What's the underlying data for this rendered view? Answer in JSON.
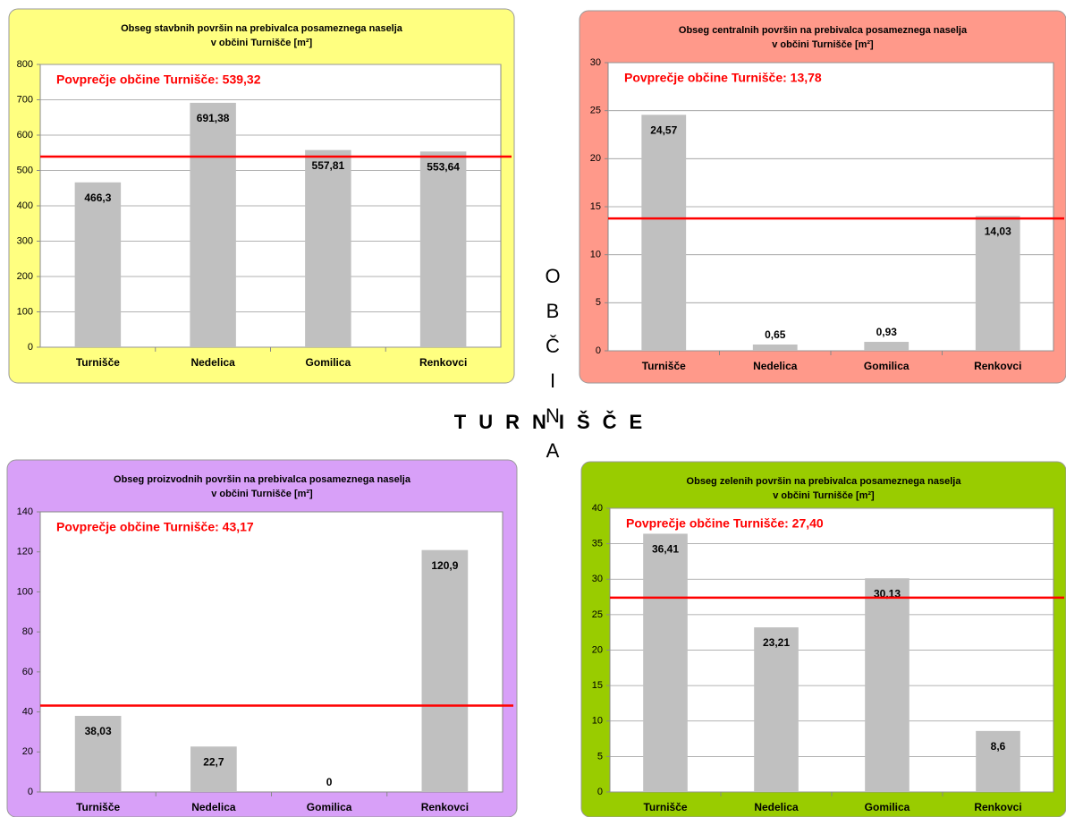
{
  "chart_data": [
    {
      "type": "bar",
      "title_lines": [
        "Obseg stavbnih površin na prebivalca posameznega naselja",
        "v občini Turnišče [m²]"
      ],
      "categories": [
        "Turnišče",
        "Nedelica",
        "Gomilica",
        "Renkovci"
      ],
      "values": [
        466.3,
        691.38,
        557.81,
        553.64
      ],
      "value_labels": [
        "466,3",
        "691,38",
        "557,81",
        "553,64"
      ],
      "color": "#c0c0c0",
      "background": "#ffff80",
      "grid": true,
      "ylim": [
        0,
        800
      ],
      "yticks": [
        0,
        100,
        200,
        300,
        400,
        500,
        600,
        700,
        800
      ],
      "average": {
        "label": "Povprečje občine Turnišče: 539,32",
        "value": 539.32,
        "color": "#ff0000"
      }
    },
    {
      "type": "bar",
      "title_lines": [
        "Obseg centralnih površin na prebivalca posameznega naselja",
        "v občini Turnišče [m²]"
      ],
      "categories": [
        "Turnišče",
        "Nedelica",
        "Gomilica",
        "Renkovci"
      ],
      "values": [
        24.57,
        0.65,
        0.93,
        14.03
      ],
      "value_labels": [
        "24,57",
        "0,65",
        "0,93",
        "14,03"
      ],
      "color": "#c0c0c0",
      "background": "#ff998a",
      "grid": true,
      "ylim": [
        0,
        30
      ],
      "yticks": [
        0,
        5,
        10,
        15,
        20,
        25,
        30
      ],
      "average": {
        "label": "Povprečje občine Turnišče:  13,78",
        "value": 13.78,
        "color": "#ff0000"
      }
    },
    {
      "type": "bar",
      "title_lines": [
        "Obseg proizvodnih površin na prebivalca posameznega naselja",
        "v občini Turnišče [m²]"
      ],
      "categories": [
        "Turnišče",
        "Nedelica",
        "Gomilica",
        "Renkovci"
      ],
      "values": [
        38.03,
        22.7,
        0,
        120.9
      ],
      "value_labels": [
        "38,03",
        "22,7",
        "0",
        "120,9"
      ],
      "color": "#c0c0c0",
      "background": "#d8a0f8",
      "grid": false,
      "ylim": [
        0,
        140
      ],
      "yticks": [
        0,
        20,
        40,
        60,
        80,
        100,
        120,
        140
      ],
      "average": {
        "label": "Povprečje občine Turnišče: 43,17",
        "value": 43.17,
        "color": "#ff0000"
      }
    },
    {
      "type": "bar",
      "title_lines": [
        "Obseg zelenih površin na prebivalca posameznega naselja",
        "v občini Turnišče [m²]"
      ],
      "categories": [
        "Turnišče",
        "Nedelica",
        "Gomilica",
        "Renkovci"
      ],
      "values": [
        36.41,
        23.21,
        30.13,
        8.6
      ],
      "value_labels": [
        "36,41",
        "23,21",
        "30,13",
        "8,6"
      ],
      "color": "#c0c0c0",
      "background": "#99cc00",
      "grid": true,
      "ylim": [
        0,
        40
      ],
      "yticks": [
        0,
        5,
        10,
        15,
        20,
        25,
        30,
        35,
        40
      ],
      "average": {
        "label": "Povprečje občine Turnišče: 27,40",
        "value": 27.4,
        "color": "#ff0000"
      }
    }
  ],
  "center": {
    "vertical": "OBČINA",
    "horizontal": "TURNIŠČE"
  }
}
